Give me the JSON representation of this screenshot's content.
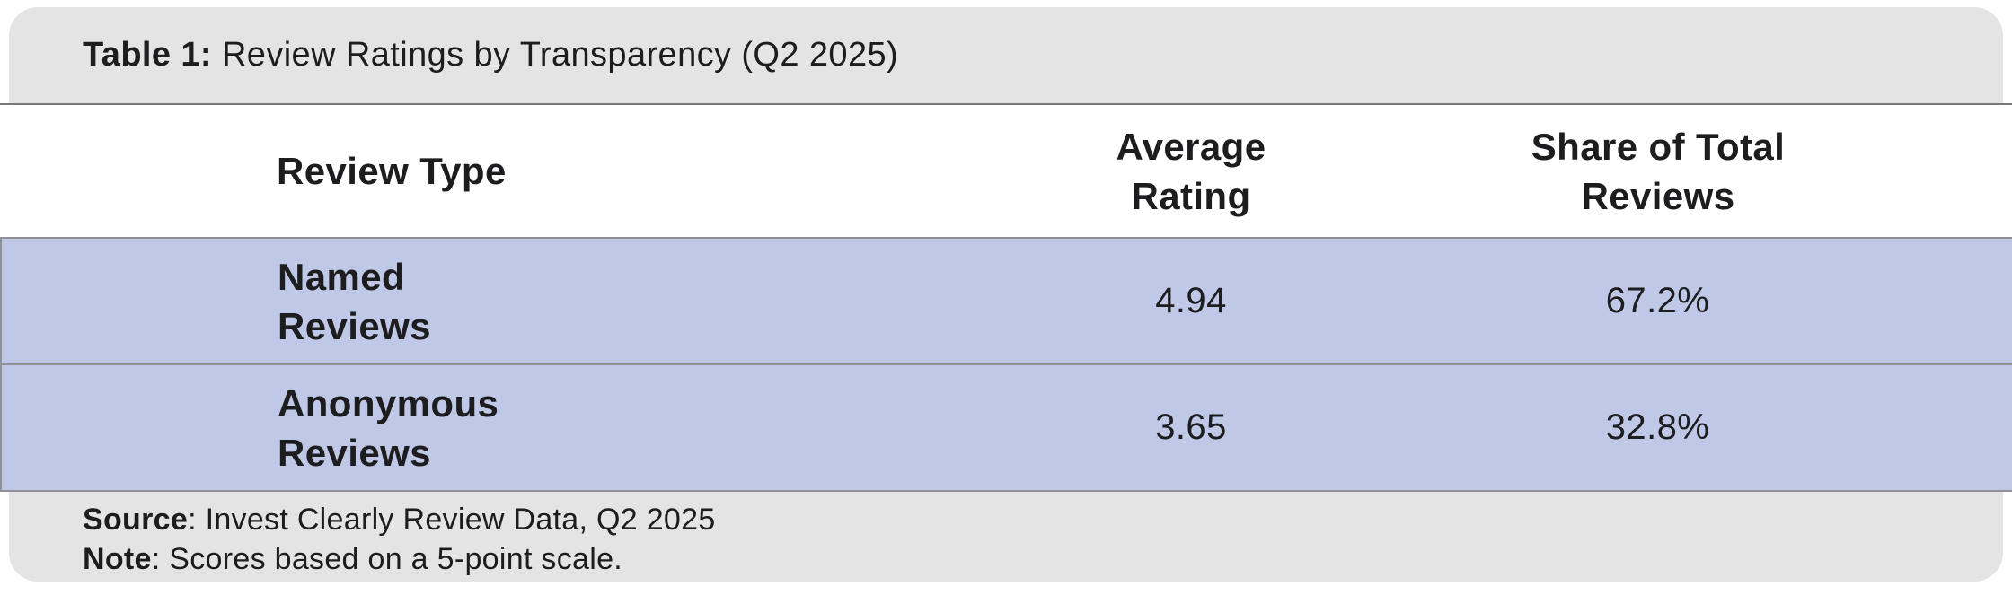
{
  "title": {
    "prefix": "Table 1:",
    "text": " Review Ratings by Transparency (Q2 2025)"
  },
  "table": {
    "headers": {
      "col1": "Review Type",
      "col2_line1": "Average",
      "col2_line2": "Rating",
      "col3_line1": "Share of Total",
      "col3_line2": "Reviews"
    },
    "rows": [
      {
        "label_line1": "Named",
        "label_line2": "Reviews",
        "rating": "4.94",
        "share": "67.2%"
      },
      {
        "label_line1": "Anonymous",
        "label_line2": "Reviews",
        "rating": "3.65",
        "share": "32.8%"
      }
    ]
  },
  "footer": {
    "source_label": "Source",
    "source_text": ": Invest Clearly Review Data, Q2 2025",
    "note_label": "Note",
    "note_text": ": Scores based on a 5-point scale."
  },
  "colors": {
    "band_gray": "#e4e4e4",
    "row_blue": "#bfc9e7",
    "divider_dark": "#78797c",
    "row_border": "#8f9198",
    "text": "#1d1d1f",
    "background": "#ffffff"
  },
  "chart_data": {
    "type": "table",
    "title": "Table 1: Review Ratings by Transparency (Q2 2025)",
    "columns": [
      "Review Type",
      "Average Rating",
      "Share of Total Reviews"
    ],
    "rows": [
      [
        "Named Reviews",
        4.94,
        "67.2%"
      ],
      [
        "Anonymous Reviews",
        3.65,
        "32.8%"
      ]
    ],
    "average_rating": [
      4.94,
      3.65
    ],
    "share_of_total_pct": [
      67.2,
      32.8
    ],
    "source": "Invest Clearly Review Data, Q2 2025",
    "note": "Scores based on a 5-point scale."
  }
}
